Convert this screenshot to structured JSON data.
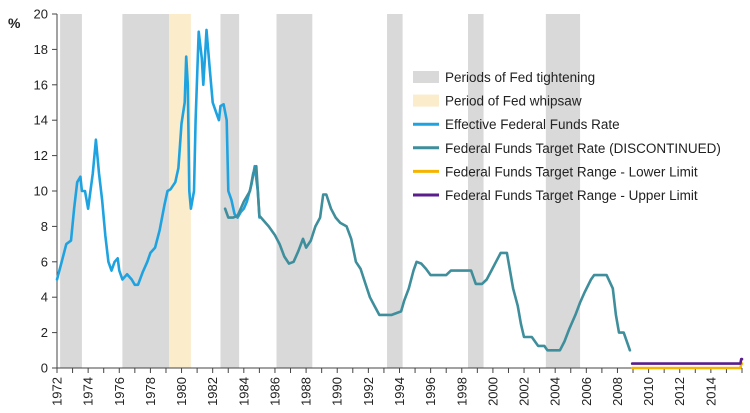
{
  "chart_data": {
    "type": "line",
    "title": "",
    "xlabel": "",
    "ylabel": "%",
    "xlim": [
      1972,
      2016
    ],
    "ylim": [
      0,
      20
    ],
    "x_ticks": [
      "1972",
      "1974",
      "1976",
      "1978",
      "1980",
      "1982",
      "1984",
      "1986",
      "1988",
      "1990",
      "1992",
      "1994",
      "1996",
      "1998",
      "2000",
      "2002",
      "2004",
      "2006",
      "2008",
      "2010",
      "2012",
      "2014"
    ],
    "y_ticks": [
      "0",
      "2",
      "4",
      "6",
      "8",
      "10",
      "12",
      "14",
      "16",
      "18",
      "20"
    ],
    "grid": false,
    "legend_position": "right",
    "shaded_periods": [
      {
        "name": "Periods of Fed tightening",
        "color": "#d9d9d9",
        "ranges": [
          [
            1972.2,
            1973.6
          ],
          [
            1976.2,
            1979.2
          ],
          [
            1982.5,
            1983.7
          ],
          [
            1986.1,
            1988.4
          ],
          [
            1993.2,
            1994.2
          ],
          [
            1998.4,
            1999.4
          ],
          [
            2003.4,
            2005.6
          ]
        ]
      },
      {
        "name": "Period of Fed whipsaw",
        "color": "#fbeccb",
        "ranges": [
          [
            1979.2,
            1980.6
          ]
        ]
      }
    ],
    "series": [
      {
        "name": "Effective Federal Funds Rate",
        "color": "#1fa3e0",
        "points": [
          [
            1972.0,
            5.0
          ],
          [
            1972.3,
            6.0
          ],
          [
            1972.6,
            7.0
          ],
          [
            1972.9,
            7.2
          ],
          [
            1973.1,
            9.0
          ],
          [
            1973.3,
            10.5
          ],
          [
            1973.5,
            10.8
          ],
          [
            1973.6,
            10.0
          ],
          [
            1973.8,
            10.0
          ],
          [
            1974.0,
            9.0
          ],
          [
            1974.3,
            11.0
          ],
          [
            1974.5,
            12.9
          ],
          [
            1974.7,
            11.0
          ],
          [
            1974.9,
            9.5
          ],
          [
            1975.1,
            7.5
          ],
          [
            1975.3,
            6.0
          ],
          [
            1975.5,
            5.5
          ],
          [
            1975.7,
            6.0
          ],
          [
            1975.9,
            6.2
          ],
          [
            1976.0,
            5.5
          ],
          [
            1976.2,
            5.0
          ],
          [
            1976.5,
            5.3
          ],
          [
            1976.8,
            5.0
          ],
          [
            1977.0,
            4.7
          ],
          [
            1977.2,
            4.7
          ],
          [
            1977.5,
            5.4
          ],
          [
            1977.8,
            6.0
          ],
          [
            1978.0,
            6.5
          ],
          [
            1978.3,
            6.8
          ],
          [
            1978.6,
            7.8
          ],
          [
            1978.9,
            9.2
          ],
          [
            1979.1,
            10.0
          ],
          [
            1979.3,
            10.1
          ],
          [
            1979.6,
            10.5
          ],
          [
            1979.8,
            11.3
          ],
          [
            1980.0,
            13.8
          ],
          [
            1980.2,
            15.0
          ],
          [
            1980.3,
            17.6
          ],
          [
            1980.4,
            16.0
          ],
          [
            1980.5,
            10.0
          ],
          [
            1980.6,
            9.0
          ],
          [
            1980.8,
            10.0
          ],
          [
            1980.9,
            14.0
          ],
          [
            1981.1,
            19.0
          ],
          [
            1981.3,
            17.5
          ],
          [
            1981.4,
            16.0
          ],
          [
            1981.5,
            17.5
          ],
          [
            1981.6,
            19.1
          ],
          [
            1981.8,
            17.0
          ],
          [
            1982.0,
            15.0
          ],
          [
            1982.2,
            14.5
          ],
          [
            1982.4,
            14.0
          ],
          [
            1982.5,
            14.8
          ],
          [
            1982.7,
            14.9
          ],
          [
            1982.9,
            14.0
          ],
          [
            1983.0,
            10.0
          ],
          [
            1983.2,
            9.5
          ],
          [
            1983.4,
            8.7
          ],
          [
            1983.6,
            8.5
          ],
          [
            1983.8,
            8.8
          ],
          [
            1984.0,
            9.0
          ],
          [
            1984.2,
            9.4
          ],
          [
            1984.5,
            10.4
          ],
          [
            1984.7,
            11.4
          ],
          [
            1984.9,
            10.0
          ],
          [
            1985.0,
            8.5
          ]
        ]
      },
      {
        "name": "Federal Funds Target Rate (DISCONTINUED)",
        "color": "#3f8e9c",
        "points": [
          [
            1982.8,
            9.0
          ],
          [
            1983.0,
            8.5
          ],
          [
            1983.3,
            8.5
          ],
          [
            1983.6,
            8.6
          ],
          [
            1984.0,
            9.4
          ],
          [
            1984.4,
            10.0
          ],
          [
            1984.6,
            11.0
          ],
          [
            1984.8,
            11.4
          ],
          [
            1985.0,
            8.6
          ],
          [
            1985.3,
            8.3
          ],
          [
            1985.6,
            8.0
          ],
          [
            1986.0,
            7.5
          ],
          [
            1986.3,
            7.0
          ],
          [
            1986.6,
            6.3
          ],
          [
            1986.9,
            5.9
          ],
          [
            1987.2,
            6.0
          ],
          [
            1987.5,
            6.6
          ],
          [
            1987.8,
            7.3
          ],
          [
            1988.0,
            6.8
          ],
          [
            1988.3,
            7.2
          ],
          [
            1988.6,
            8.0
          ],
          [
            1988.9,
            8.5
          ],
          [
            1989.1,
            9.8
          ],
          [
            1989.3,
            9.8
          ],
          [
            1989.6,
            9.0
          ],
          [
            1989.9,
            8.5
          ],
          [
            1990.2,
            8.2
          ],
          [
            1990.6,
            8.0
          ],
          [
            1990.9,
            7.3
          ],
          [
            1991.2,
            6.0
          ],
          [
            1991.5,
            5.6
          ],
          [
            1991.8,
            4.8
          ],
          [
            1992.1,
            4.0
          ],
          [
            1992.4,
            3.5
          ],
          [
            1992.7,
            3.0
          ],
          [
            1993.0,
            3.0
          ],
          [
            1993.5,
            3.0
          ],
          [
            1994.1,
            3.2
          ],
          [
            1994.3,
            3.8
          ],
          [
            1994.6,
            4.5
          ],
          [
            1994.9,
            5.5
          ],
          [
            1995.1,
            6.0
          ],
          [
            1995.4,
            5.9
          ],
          [
            1995.7,
            5.6
          ],
          [
            1996.0,
            5.25
          ],
          [
            1996.5,
            5.25
          ],
          [
            1997.0,
            5.25
          ],
          [
            1997.3,
            5.5
          ],
          [
            1997.8,
            5.5
          ],
          [
            1998.2,
            5.5
          ],
          [
            1998.6,
            5.5
          ],
          [
            1998.9,
            4.75
          ],
          [
            1999.3,
            4.75
          ],
          [
            1999.6,
            5.0
          ],
          [
            1999.9,
            5.5
          ],
          [
            2000.2,
            6.0
          ],
          [
            2000.5,
            6.5
          ],
          [
            2000.9,
            6.5
          ],
          [
            2001.1,
            5.5
          ],
          [
            2001.3,
            4.5
          ],
          [
            2001.6,
            3.5
          ],
          [
            2001.8,
            2.5
          ],
          [
            2002.0,
            1.75
          ],
          [
            2002.5,
            1.75
          ],
          [
            2002.9,
            1.25
          ],
          [
            2003.3,
            1.25
          ],
          [
            2003.5,
            1.0
          ],
          [
            2004.3,
            1.0
          ],
          [
            2004.6,
            1.5
          ],
          [
            2004.9,
            2.2
          ],
          [
            2005.3,
            3.0
          ],
          [
            2005.6,
            3.7
          ],
          [
            2005.9,
            4.3
          ],
          [
            2006.3,
            5.0
          ],
          [
            2006.5,
            5.25
          ],
          [
            2007.3,
            5.25
          ],
          [
            2007.7,
            4.5
          ],
          [
            2007.9,
            3.0
          ],
          [
            2008.1,
            2.0
          ],
          [
            2008.4,
            2.0
          ],
          [
            2008.6,
            1.5
          ],
          [
            2008.8,
            1.0
          ]
        ]
      },
      {
        "name": "Federal Funds Target Range - Lower Limit",
        "color": "#f5b400",
        "points": [
          [
            2008.95,
            0.0
          ],
          [
            2015.9,
            0.0
          ],
          [
            2015.95,
            0.25
          ],
          [
            2016.0,
            0.25
          ]
        ]
      },
      {
        "name": "Federal Funds Target Range - Upper Limit",
        "color": "#5a1e8c",
        "points": [
          [
            2008.95,
            0.25
          ],
          [
            2015.9,
            0.25
          ],
          [
            2015.95,
            0.5
          ],
          [
            2016.0,
            0.5
          ]
        ]
      }
    ]
  }
}
